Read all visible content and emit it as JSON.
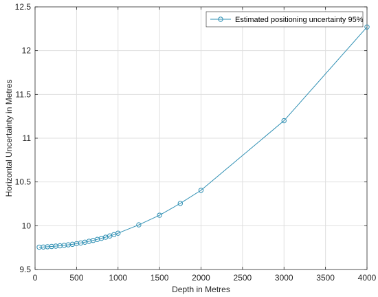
{
  "chart_data": {
    "type": "line",
    "title": "",
    "xlabel": "Depth in Metres",
    "ylabel": "Horizontal Uncertainty in Metres",
    "xlim": [
      0,
      4000
    ],
    "ylim": [
      9.5,
      12.5
    ],
    "xticks": [
      0,
      500,
      1000,
      1500,
      2000,
      2500,
      3000,
      3500,
      4000
    ],
    "xtick_labels": [
      "0",
      "500",
      "1000",
      "1500",
      "2000",
      "2500",
      "3000",
      "3500",
      "4000"
    ],
    "yticks": [
      9.5,
      10,
      10.5,
      11,
      11.5,
      12,
      12.5
    ],
    "ytick_labels": [
      "9.5",
      "10",
      "10.5",
      "11",
      "11.5",
      "12",
      "12.5"
    ],
    "grid": true,
    "legend_position": "top-right",
    "series": [
      {
        "name": "Estimated positioning uncertainty 95%",
        "color": "#2e8fb3",
        "marker": "circle",
        "x": [
          50,
          100,
          150,
          200,
          250,
          300,
          350,
          400,
          450,
          500,
          550,
          600,
          650,
          700,
          750,
          800,
          850,
          900,
          950,
          1000,
          1250,
          1500,
          1750,
          2000,
          3000,
          4000
        ],
        "y": [
          9.755,
          9.757,
          9.76,
          9.763,
          9.767,
          9.771,
          9.776,
          9.782,
          9.788,
          9.795,
          9.803,
          9.812,
          9.822,
          9.832,
          9.844,
          9.856,
          9.869,
          9.883,
          9.898,
          9.915,
          10.01,
          10.12,
          10.255,
          10.405,
          11.2,
          12.27
        ]
      }
    ]
  }
}
